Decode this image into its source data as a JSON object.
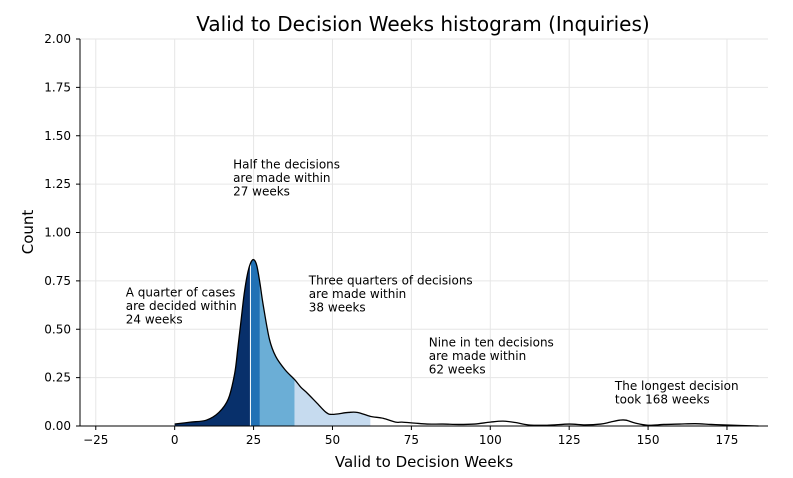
{
  "chart_data": {
    "type": "area",
    "title": "Valid to Decision Weeks histogram (Inquiries)",
    "xlabel": "Valid to Decision Weeks",
    "ylabel": "Count",
    "xlim": [
      -30,
      188
    ],
    "ylim": [
      0,
      2.0
    ],
    "x_ticks": [
      -25,
      0,
      25,
      50,
      75,
      100,
      125,
      150,
      175
    ],
    "x_tick_labels": [
      "−25",
      "0",
      "25",
      "50",
      "75",
      "100",
      "125",
      "150",
      "175"
    ],
    "y_ticks": [
      0,
      0.25,
      0.5,
      0.75,
      1.0,
      1.25,
      1.5,
      1.75,
      2.0
    ],
    "y_tick_labels": [
      "0.00",
      "0.25",
      "0.50",
      "0.75",
      "1.00",
      "1.25",
      "1.50",
      "1.75",
      "2.00"
    ],
    "grid": true,
    "density": {
      "x": [
        0,
        5,
        10,
        14,
        17,
        19,
        20,
        21,
        22,
        23,
        24,
        25,
        26,
        27,
        28,
        30,
        32,
        35,
        38,
        40,
        42,
        45,
        48,
        50,
        55,
        58,
        62,
        66,
        70,
        72,
        76,
        80,
        85,
        90,
        95,
        100,
        104,
        108,
        112,
        118,
        125,
        130,
        135,
        138,
        141,
        143,
        146,
        150,
        155,
        160,
        165,
        170,
        175,
        185
      ],
      "y": [
        0.01,
        0.02,
        0.03,
        0.07,
        0.14,
        0.27,
        0.4,
        0.54,
        0.68,
        0.78,
        0.84,
        0.86,
        0.83,
        0.74,
        0.63,
        0.45,
        0.36,
        0.29,
        0.24,
        0.2,
        0.17,
        0.12,
        0.07,
        0.06,
        0.07,
        0.07,
        0.05,
        0.04,
        0.02,
        0.02,
        0.015,
        0.01,
        0.01,
        0.008,
        0.01,
        0.02,
        0.025,
        0.018,
        0.006,
        0.004,
        0.01,
        0.006,
        0.01,
        0.02,
        0.03,
        0.03,
        0.015,
        0.004,
        0.008,
        0.01,
        0.012,
        0.008,
        0.005,
        0.0
      ]
    },
    "quantile_bands": [
      {
        "from": 0,
        "to": 24,
        "color": "#08306b"
      },
      {
        "from": 24,
        "to": 27,
        "color": "#2171b5"
      },
      {
        "from": 27,
        "to": 38,
        "color": "#6baed6"
      },
      {
        "from": 38,
        "to": 62,
        "color": "#c6dbef"
      }
    ],
    "quantile_dividers": [
      24
    ],
    "annotations": [
      {
        "lines": [
          "A quarter of cases",
          "are decided within",
          "24 weeks"
        ],
        "x": -15.5,
        "y": 0.67
      },
      {
        "lines": [
          "Half the decisions",
          "are made within",
          "27 weeks"
        ],
        "x": 18.5,
        "y": 1.33
      },
      {
        "lines": [
          "Three quarters of decisions",
          "are made within",
          "38 weeks"
        ],
        "x": 42.5,
        "y": 0.73
      },
      {
        "lines": [
          "Nine in ten decisions",
          "are made within",
          "62 weeks"
        ],
        "x": 80.5,
        "y": 0.41
      },
      {
        "lines": [
          "The longest decision",
          "took 168 weeks"
        ],
        "x": 139.5,
        "y": 0.185
      }
    ]
  }
}
